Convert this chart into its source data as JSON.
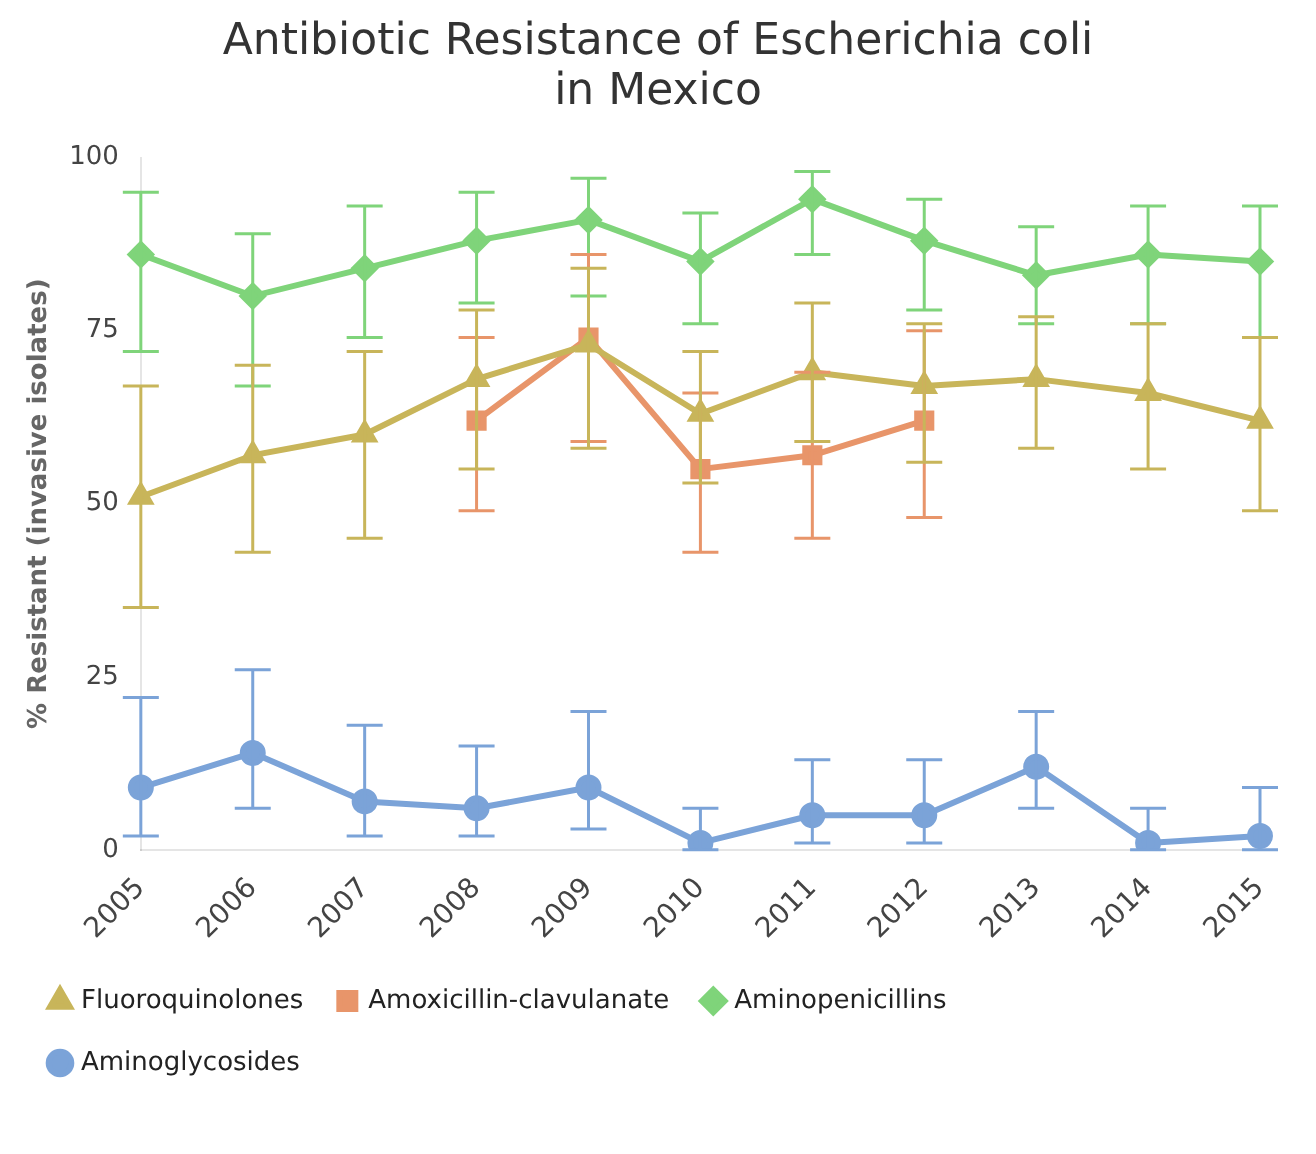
{
  "chart_data": {
    "type": "line",
    "title": "Antibiotic Resistance of Escherichia coli\nin Mexico",
    "ylabel": "% Resistant (invasive isolates)",
    "categories": [
      "2005",
      "2006",
      "2007",
      "2008",
      "2009",
      "2010",
      "2011",
      "2012",
      "2013",
      "2014",
      "2015"
    ],
    "ylim": [
      0,
      100
    ],
    "yticks": [
      0,
      25,
      50,
      75,
      100
    ],
    "grid": false,
    "legend": "bottom",
    "series": [
      {
        "name": "Aminoglycosides",
        "color": "#7ba3d8",
        "marker": "circle",
        "values": [
          9,
          14,
          7,
          6,
          9,
          1,
          5,
          5,
          12,
          1,
          2
        ],
        "errors": [
          [
            2,
            22
          ],
          [
            6,
            26
          ],
          [
            2,
            18
          ],
          [
            2,
            15
          ],
          [
            3,
            20
          ],
          [
            0,
            6
          ],
          [
            1,
            13
          ],
          [
            1,
            13
          ],
          [
            6,
            20
          ],
          [
            0,
            6
          ],
          [
            0,
            9
          ]
        ]
      },
      {
        "name": "Aminopenicillins",
        "color": "#7fd47a",
        "marker": "diamond",
        "values": [
          86,
          80,
          84,
          88,
          91,
          85,
          94,
          88,
          83,
          86,
          85
        ],
        "errors": [
          [
            72,
            95
          ],
          [
            67,
            89
          ],
          [
            74,
            93
          ],
          [
            79,
            95
          ],
          [
            80,
            97
          ],
          [
            76,
            92
          ],
          [
            86,
            98
          ],
          [
            78,
            94
          ],
          [
            76,
            90
          ],
          [
            76,
            93
          ],
          [
            74,
            93
          ]
        ]
      },
      {
        "name": "Amoxicillin-clavulanate",
        "color": "#e8956a",
        "marker": "square",
        "values": [
          null,
          null,
          null,
          62,
          74,
          55,
          57,
          62,
          null,
          null,
          null
        ],
        "errors": [
          null,
          null,
          null,
          [
            49,
            74
          ],
          [
            59,
            86
          ],
          [
            43,
            66
          ],
          [
            45,
            69
          ],
          [
            48,
            75
          ],
          null,
          null,
          null
        ]
      },
      {
        "name": "Fluoroquinolones",
        "color": "#c8b55a",
        "marker": "triangle",
        "values": [
          51,
          57,
          60,
          68,
          73,
          63,
          69,
          67,
          68,
          66,
          62
        ],
        "errors": [
          [
            35,
            67
          ],
          [
            43,
            70
          ],
          [
            45,
            72
          ],
          [
            55,
            78
          ],
          [
            58,
            84
          ],
          [
            53,
            72
          ],
          [
            59,
            79
          ],
          [
            56,
            76
          ],
          [
            58,
            77
          ],
          [
            55,
            76
          ],
          [
            49,
            74
          ]
        ]
      }
    ]
  }
}
